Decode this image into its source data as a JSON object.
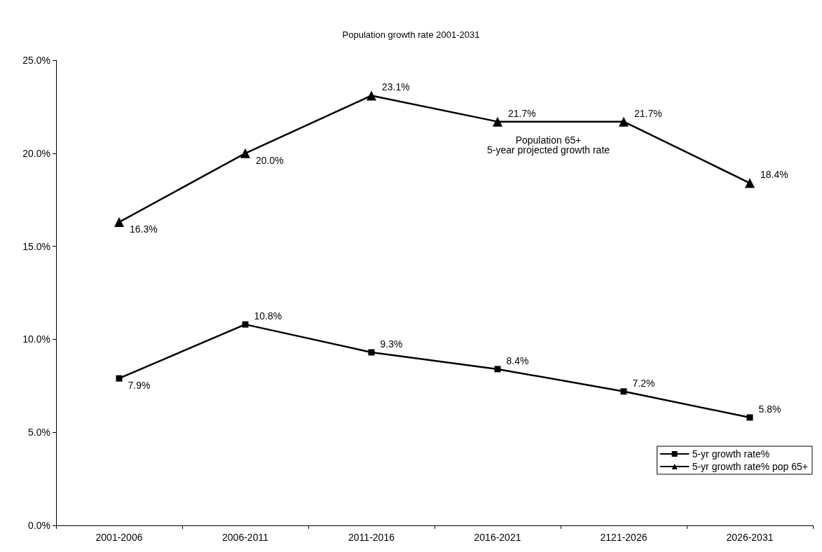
{
  "chart_data": {
    "type": "line",
    "title": "Population growth rate 2001-2031",
    "categories": [
      "2001-2006",
      "2006-2011",
      "2011-2016",
      "2016-2021",
      "2121-2026",
      "2026-2031"
    ],
    "series": [
      {
        "name": "5-yr growth rate%",
        "color": "#000000",
        "marker": "square",
        "values": [
          7.9,
          10.8,
          9.3,
          8.4,
          7.2,
          5.8
        ],
        "value_labels": [
          "7.9%",
          "10.8%",
          "9.3%",
          "8.4%",
          "7.2%",
          "5.8%"
        ]
      },
      {
        "name": "5-yr growth rate% pop 65+",
        "color": "#000000",
        "marker": "triangle",
        "values": [
          16.3,
          20.0,
          23.1,
          21.7,
          21.7,
          18.4
        ],
        "value_labels": [
          "16.3%",
          "20.0%",
          "23.1%",
          "21.7%",
          "21.7%",
          "18.4%"
        ]
      }
    ],
    "ylim": [
      0,
      25
    ],
    "yticks": [
      {
        "value": 0,
        "label": "0.0%"
      },
      {
        "value": 5,
        "label": "5.0%"
      },
      {
        "value": 10,
        "label": "10.0%"
      },
      {
        "value": 15,
        "label": "15.0%"
      },
      {
        "value": 20,
        "label": "20.0%"
      },
      {
        "value": 25,
        "label": "25.0%"
      }
    ],
    "annotations": [
      "Population 65+\n5-year projected growth rate"
    ],
    "grid": false,
    "legend": "bottom right",
    "line_style": "solid"
  }
}
